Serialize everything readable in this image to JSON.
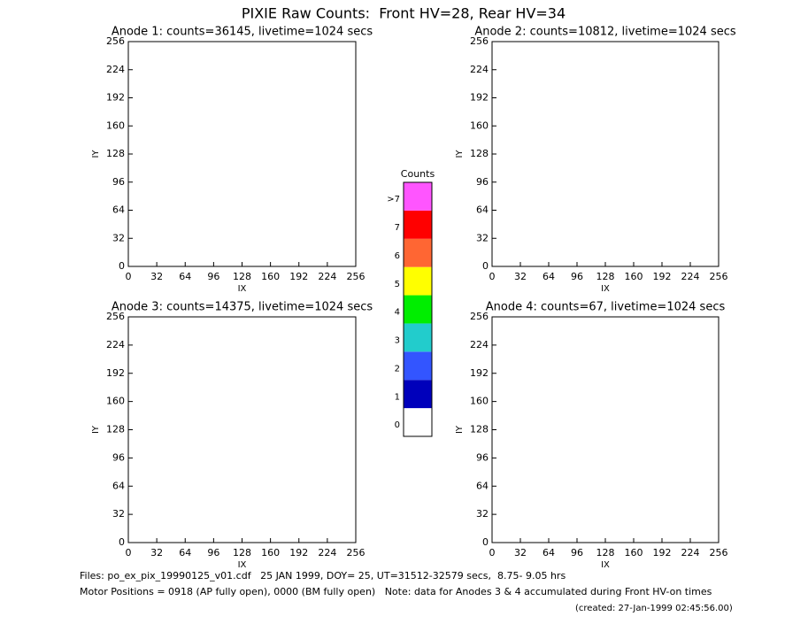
{
  "title": "PIXIE Raw Counts:  Front HV=28, Rear HV=34",
  "chart_data": [
    {
      "type": "heatmap",
      "title": "Anode 1: counts=36145, livetime=1024 secs",
      "x_label": "IX",
      "y_label": "IY",
      "xlim": [
        0,
        256
      ],
      "ylim": [
        0,
        256
      ],
      "xticks": [
        0,
        32,
        64,
        96,
        128,
        160,
        192,
        224,
        256
      ],
      "yticks": [
        0,
        32,
        64,
        96,
        128,
        160,
        192,
        224,
        256
      ]
    },
    {
      "type": "heatmap",
      "title": "Anode 2: counts=10812, livetime=1024 secs",
      "x_label": "IX",
      "y_label": "IY",
      "xlim": [
        0,
        256
      ],
      "ylim": [
        0,
        256
      ],
      "xticks": [
        0,
        32,
        64,
        96,
        128,
        160,
        192,
        224,
        256
      ],
      "yticks": [
        0,
        32,
        64,
        96,
        128,
        160,
        192,
        224,
        256
      ]
    },
    {
      "type": "heatmap",
      "title": "Anode 3: counts=14375, livetime=1024 secs",
      "x_label": "IX",
      "y_label": "IY",
      "xlim": [
        0,
        256
      ],
      "ylim": [
        0,
        256
      ],
      "xticks": [
        0,
        32,
        64,
        96,
        128,
        160,
        192,
        224,
        256
      ],
      "yticks": [
        0,
        32,
        64,
        96,
        128,
        160,
        192,
        224,
        256
      ]
    },
    {
      "type": "heatmap",
      "title": "Anode 4: counts=67, livetime=1024 secs",
      "x_label": "IX",
      "y_label": "IY",
      "xlim": [
        0,
        256
      ],
      "ylim": [
        0,
        256
      ],
      "xticks": [
        0,
        32,
        64,
        96,
        128,
        160,
        192,
        224,
        256
      ],
      "yticks": [
        0,
        32,
        64,
        96,
        128,
        160,
        192,
        224,
        256
      ]
    }
  ],
  "colorbar": {
    "title": "Counts",
    "levels": [
      0,
      1,
      2,
      3,
      4,
      5,
      6,
      7,
      ">7"
    ],
    "colors": [
      "#ffffff",
      "#0000bb",
      "#3355ff",
      "#22cccc",
      "#00ee00",
      "#ffff00",
      "#ff6633",
      "#ff0000",
      "#ff55ff"
    ]
  },
  "footer": [
    "Files: po_ex_pix_19990125_v01.cdf   25 JAN 1999, DOY= 25, UT=31512-32579 secs,  8.75- 9.05 hrs",
    "Motor Positions = 0918 (AP fully open), 0000 (BM fully open)   Note: data for Anodes 3 & 4 accumulated during Front HV-on times"
  ],
  "created": "(created: 27-Jan-1999 02:45:56.00)"
}
